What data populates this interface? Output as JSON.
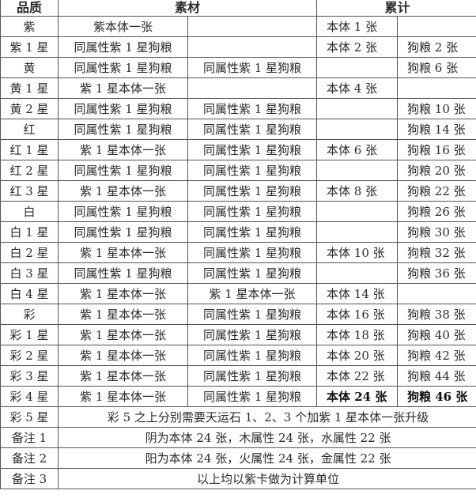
{
  "header": {
    "quality": "品质",
    "materials": "素材",
    "total": "累计"
  },
  "rows": [
    {
      "q": "紫",
      "m1": "紫本体一张",
      "m2": "",
      "t1": "本体 1 张",
      "t2": ""
    },
    {
      "q": "紫 1 星",
      "m1": "同属性紫 1 星狗粮",
      "m2": "",
      "t1": "本体 2 张",
      "t2": "狗粮 2 张"
    },
    {
      "q": "黄",
      "m1": "同属性紫 1 星狗粮",
      "m2": "同属性紫 1 星狗粮",
      "t1": "",
      "t2": "狗粮 6 张"
    },
    {
      "q": "黄 1 星",
      "m1": "紫 1 星本体一张",
      "m2": "",
      "t1": "本体 4 张",
      "t2": ""
    },
    {
      "q": "黄 2 星",
      "m1": "同属性紫 1 星狗粮",
      "m2": "同属性紫 1 星狗粮",
      "t1": "",
      "t2": "狗粮 10 张"
    },
    {
      "q": "红",
      "m1": "同属性紫 1 星狗粮",
      "m2": "同属性紫 1 星狗粮",
      "t1": "",
      "t2": "狗粮 14 张"
    },
    {
      "q": "红 1 星",
      "m1": "紫 1 星本体一张",
      "m2": "同属性紫 1 星狗粮",
      "t1": "本体 6 张",
      "t2": "狗粮 16 张"
    },
    {
      "q": "红 2 星",
      "m1": "同属性紫 1 星狗粮",
      "m2": "同属性紫 1 星狗粮",
      "t1": "",
      "t2": "狗粮 20 张"
    },
    {
      "q": "红 3 星",
      "m1": "紫 1 星本体一张",
      "m2": "同属性紫 1 星狗粮",
      "t1": "本体 8 张",
      "t2": "狗粮 22 张"
    },
    {
      "q": "白",
      "m1": "同属性紫 1 星狗粮",
      "m2": "同属性紫 1 星狗粮",
      "t1": "",
      "t2": "狗粮 26 张"
    },
    {
      "q": "白 1 星",
      "m1": "同属性紫 1 星狗粮",
      "m2": "同属性紫 1 星狗粮",
      "t1": "",
      "t2": "狗粮 30 张"
    },
    {
      "q": "白 2 星",
      "m1": "紫 1 星本体一张",
      "m2": "同属性紫 1 星狗粮",
      "t1": "本体 10 张",
      "t2": "狗粮 32 张"
    },
    {
      "q": "白 3 星",
      "m1": "同属性紫 1 星狗粮",
      "m2": "同属性紫 1 星狗粮",
      "t1": "",
      "t2": "狗粮 36 张"
    },
    {
      "q": "白 4 星",
      "m1": "紫 1 星本体一张",
      "m2": "紫 1 星本体一张",
      "t1": "本体 14 张",
      "t2": ""
    },
    {
      "q": "彩",
      "m1": "紫 1 星本体一张",
      "m2": "同属性紫 1 星狗粮",
      "t1": "本体 16 张",
      "t2": "狗粮 38 张"
    },
    {
      "q": "彩 1 星",
      "m1": "紫 1 星本体一张",
      "m2": "同属性紫 1 星狗粮",
      "t1": "本体 18 张",
      "t2": "狗粮 40 张"
    },
    {
      "q": "彩 2 星",
      "m1": "紫 1 星本体一张",
      "m2": "同属性紫 1 星狗粮",
      "t1": "本体 20 张",
      "t2": "狗粮 42 张"
    },
    {
      "q": "彩 3 星",
      "m1": "紫 1 星本体一张",
      "m2": "同属性紫 1 星狗粮",
      "t1": "本体 22 张",
      "t2": "狗粮 44 张"
    },
    {
      "q": "彩 4 星",
      "m1": "紫 1 星本体一张",
      "m2": "同属性紫 1 星狗粮",
      "t1": "本体 24 张",
      "t2": "狗粮 46 张",
      "bold": true
    }
  ],
  "notes": [
    {
      "q": "彩 5 星",
      "text": "彩 5 之上分别需要天运石 1、2、3 个加紫 1 星本体一张升级"
    },
    {
      "q": "备注 1",
      "text": "阴为本体 24 张，木属性 24 张，水属性 22 张"
    },
    {
      "q": "备注 2",
      "text": "阳为本体 24 张，火属性 24 张，金属性 22 张"
    },
    {
      "q": "备注 3",
      "text": "以上均以紫卡做为计算单位"
    }
  ]
}
